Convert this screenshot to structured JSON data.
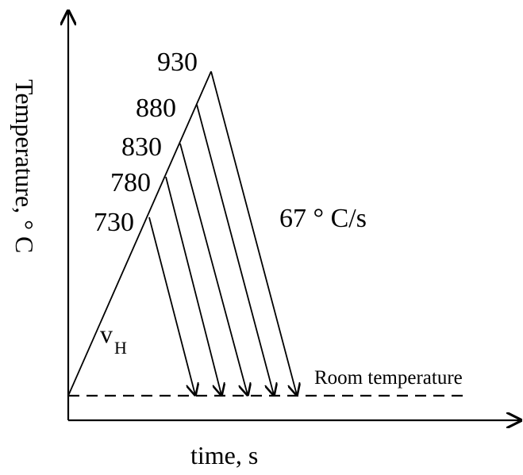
{
  "diagram": {
    "y_axis_label": "Temperature, ° C",
    "x_axis_label": "time, s",
    "room_temperature_label": "Room temperature",
    "cooling_rate_label": "67 ° C/s",
    "heating_rate_symbol": "v",
    "heating_rate_subscript": "H",
    "peak_temperatures": [
      "730",
      "780",
      "830",
      "880",
      "930"
    ]
  }
}
